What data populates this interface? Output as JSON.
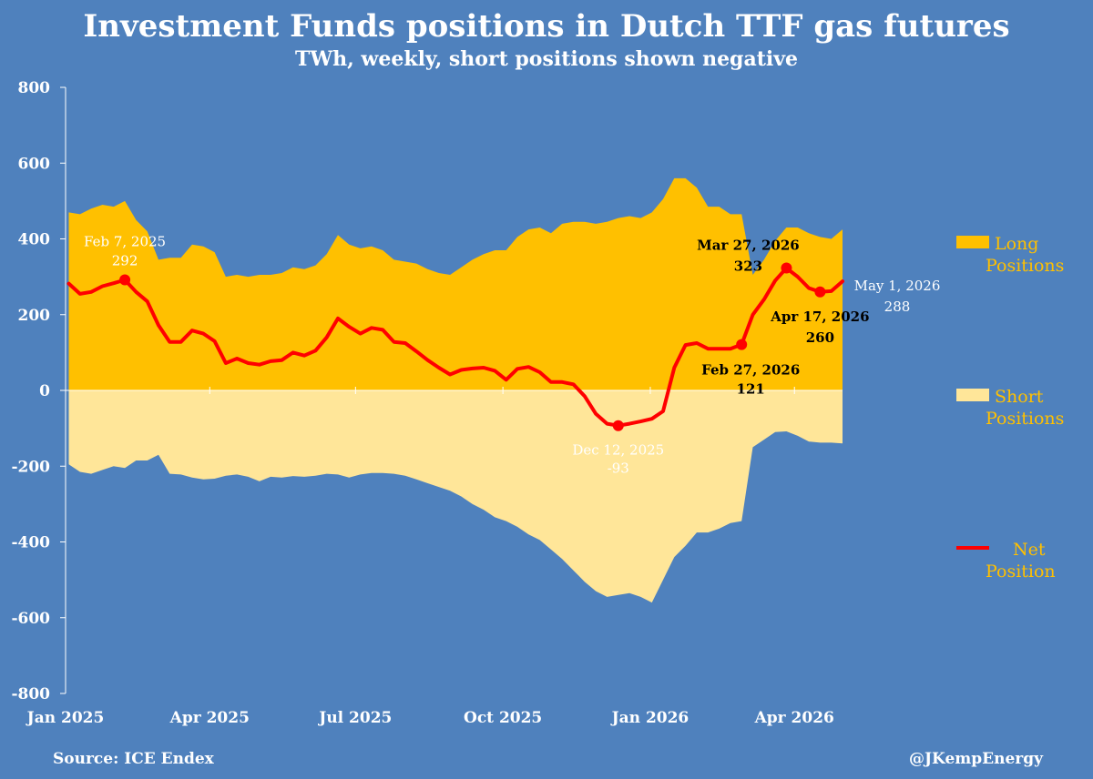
{
  "title": "Investment Funds positions in Dutch TTF gas futures",
  "subtitle": "TWh, weekly, short positions shown negative",
  "source": "Source: ICE Endex",
  "credit": "@JKempEnergy",
  "colors": {
    "background": "#4f81bd",
    "long": "#ffc000",
    "short": "#ffe699",
    "net": "#ff0000",
    "axis_text": "#ffffff",
    "legend_text": "#ffc000"
  },
  "chart_data": {
    "type": "area",
    "xlabel": "",
    "ylabel": "",
    "ylim": [
      -800,
      800
    ],
    "yticks": [
      800,
      600,
      400,
      200,
      0,
      -200,
      -400,
      -600,
      -800
    ],
    "x_range": [
      "2025-01-01",
      "2026-05-01"
    ],
    "xtick_labels": [
      {
        "date": "2025-01-01",
        "label": "Jan 2025"
      },
      {
        "date": "2025-04-01",
        "label": "Apr 2025"
      },
      {
        "date": "2025-07-01",
        "label": "Jul 2025"
      },
      {
        "date": "2025-10-01",
        "label": "Oct 2025"
      },
      {
        "date": "2026-01-01",
        "label": "Jan 2026"
      },
      {
        "date": "2026-04-01",
        "label": "Apr 2026"
      }
    ],
    "dates": [
      "2025-01-03",
      "2025-01-10",
      "2025-01-17",
      "2025-01-24",
      "2025-01-31",
      "2025-02-07",
      "2025-02-14",
      "2025-02-21",
      "2025-02-28",
      "2025-03-07",
      "2025-03-14",
      "2025-03-21",
      "2025-03-28",
      "2025-04-04",
      "2025-04-11",
      "2025-04-18",
      "2025-04-25",
      "2025-05-02",
      "2025-05-09",
      "2025-05-16",
      "2025-05-23",
      "2025-05-30",
      "2025-06-06",
      "2025-06-13",
      "2025-06-20",
      "2025-06-27",
      "2025-07-04",
      "2025-07-11",
      "2025-07-18",
      "2025-07-25",
      "2025-08-01",
      "2025-08-08",
      "2025-08-15",
      "2025-08-22",
      "2025-08-29",
      "2025-09-05",
      "2025-09-12",
      "2025-09-19",
      "2025-09-26",
      "2025-10-03",
      "2025-10-10",
      "2025-10-17",
      "2025-10-24",
      "2025-10-31",
      "2025-11-07",
      "2025-11-14",
      "2025-11-21",
      "2025-11-28",
      "2025-12-05",
      "2025-12-12",
      "2025-12-19",
      "2025-12-26",
      "2026-01-02",
      "2026-01-09",
      "2026-01-16",
      "2026-01-23",
      "2026-01-30",
      "2026-02-06",
      "2026-02-13",
      "2026-02-20",
      "2026-02-27",
      "2026-03-06",
      "2026-03-13",
      "2026-03-20",
      "2026-03-27",
      "2026-04-03",
      "2026-04-10",
      "2026-04-17",
      "2026-04-24",
      "2026-05-01"
    ],
    "series": [
      {
        "name": "Long Positions",
        "values": [
          470,
          465,
          480,
          490,
          485,
          500,
          450,
          420,
          345,
          350,
          350,
          385,
          380,
          365,
          300,
          305,
          300,
          305,
          305,
          310,
          325,
          320,
          330,
          360,
          410,
          385,
          375,
          380,
          370,
          345,
          340,
          335,
          320,
          310,
          305,
          325,
          345,
          360,
          370,
          370,
          405,
          425,
          430,
          415,
          440,
          445,
          445,
          440,
          445,
          455,
          460,
          455,
          470,
          505,
          560,
          560,
          535,
          485,
          485,
          465,
          465,
          305,
          345,
          395,
          430,
          430,
          415,
          405,
          400,
          425
        ]
      },
      {
        "name": "Short Positions",
        "values": [
          -195,
          -215,
          -220,
          -210,
          -200,
          -205,
          -185,
          -185,
          -170,
          -220,
          -222,
          -230,
          -235,
          -233,
          -225,
          -222,
          -228,
          -240,
          -228,
          -230,
          -226,
          -228,
          -225,
          -220,
          -222,
          -230,
          -222,
          -218,
          -218,
          -220,
          -225,
          -235,
          -245,
          -255,
          -265,
          -280,
          -300,
          -315,
          -335,
          -345,
          -360,
          -380,
          -395,
          -420,
          -445,
          -475,
          -505,
          -530,
          -545,
          -540,
          -535,
          -545,
          -560,
          -500,
          -440,
          -410,
          -375,
          -375,
          -365,
          -350,
          -345,
          -150,
          -130,
          -110,
          -108,
          -120,
          -135,
          -138,
          -138,
          -140
        ]
      },
      {
        "name": "Net Position",
        "values": [
          282,
          255,
          260,
          275,
          283,
          292,
          260,
          235,
          172,
          128,
          128,
          158,
          150,
          130,
          72,
          84,
          72,
          68,
          77,
          80,
          100,
          92,
          105,
          140,
          190,
          168,
          150,
          165,
          160,
          128,
          125,
          103,
          80,
          60,
          42,
          54,
          58,
          60,
          52,
          28,
          57,
          62,
          48,
          22,
          22,
          16,
          -15,
          -62,
          -88,
          -93,
          -88,
          -82,
          -75,
          -55,
          60,
          120,
          125,
          110,
          110,
          110,
          121,
          200,
          240,
          290,
          323,
          300,
          270,
          260,
          262,
          288
        ]
      }
    ],
    "annotations": [
      {
        "date": "2025-02-07",
        "label": "Feb 7, 2025",
        "value": "292"
      },
      {
        "date": "2025-12-12",
        "label": "Dec 12, 2025",
        "value": "-93"
      },
      {
        "date": "2026-02-27",
        "label": "Feb 27, 2026",
        "value": "121"
      },
      {
        "date": "2026-03-27",
        "label": "Mar 27, 2026",
        "value": "323"
      },
      {
        "date": "2026-04-17",
        "label": "Apr 17, 2026",
        "value": "260"
      },
      {
        "date": "2026-05-01",
        "label": "May 1, 2026",
        "value": "288"
      }
    ],
    "legend": [
      {
        "label_line1": "Long",
        "label_line2": "Positions",
        "series": "Long Positions"
      },
      {
        "label_line1": "Short",
        "label_line2": "Positions",
        "series": "Short Positions"
      },
      {
        "label_line1": "Net",
        "label_line2": "Position",
        "series": "Net Position"
      }
    ],
    "legend_position": "right",
    "grid": false
  }
}
